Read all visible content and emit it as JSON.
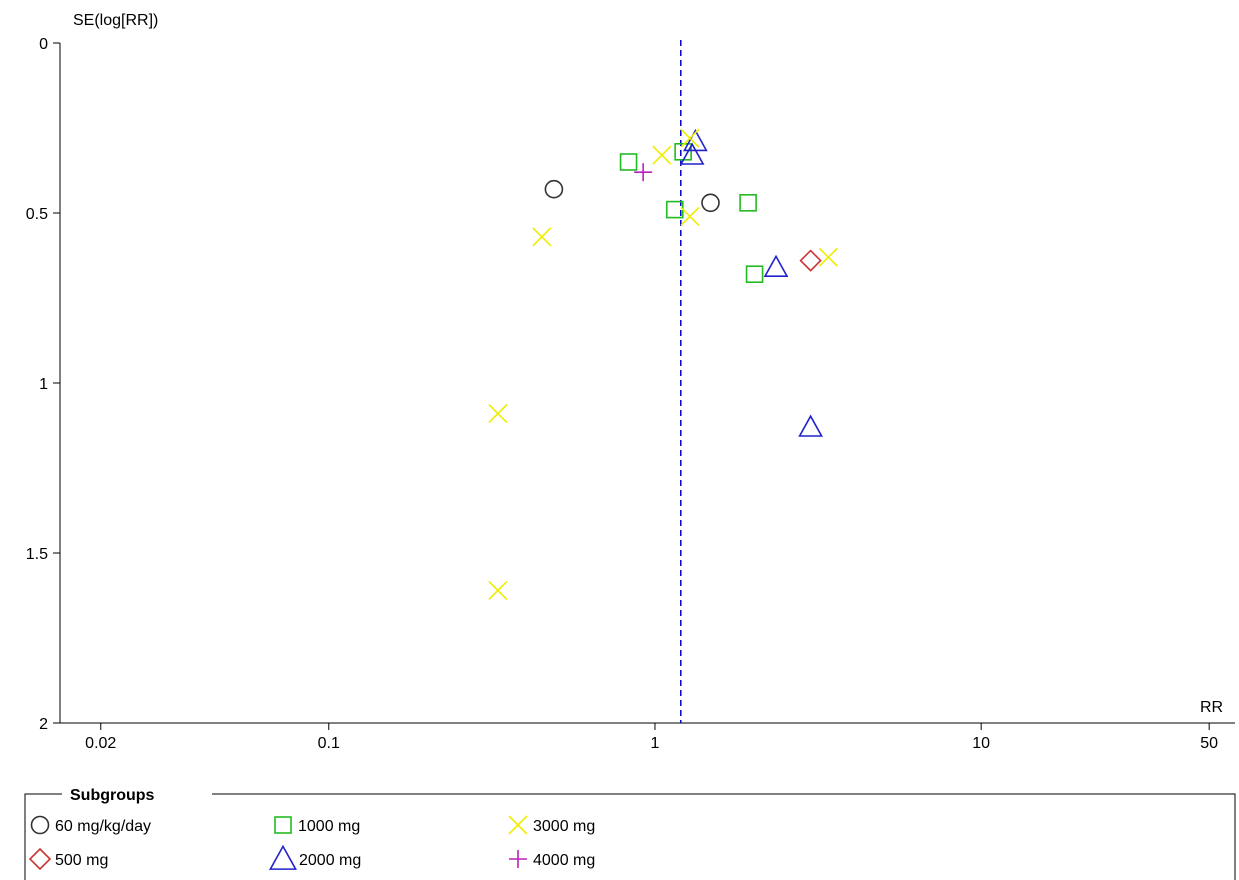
{
  "chart_data": {
    "type": "scatter",
    "title": "",
    "xlabel": "RR",
    "ylabel": "SE(log[RR])",
    "x_scale": "log",
    "xlim": [
      0.015,
      60
    ],
    "ylim": [
      0,
      2
    ],
    "y_inverted": true,
    "x_ticks": [
      0.02,
      0.1,
      1,
      10,
      50
    ],
    "x_tick_labels": [
      "0.02",
      "0.1",
      "1",
      "10",
      "50"
    ],
    "y_ticks": [
      0,
      0.5,
      1,
      1.5,
      2
    ],
    "y_tick_labels": [
      "0",
      "0.5",
      "1",
      "1.5",
      "2"
    ],
    "reference_line": {
      "x": 1.2,
      "style": "dashed",
      "color": "#0000cc"
    },
    "grid": false,
    "legend": {
      "title": "Subgroups",
      "placement": "bottom"
    },
    "series": [
      {
        "name": "60 mg/kg/day",
        "marker": "circle",
        "color": "#333333",
        "points": [
          [
            0.49,
            0.43
          ],
          [
            1.48,
            0.47
          ]
        ]
      },
      {
        "name": "500 mg",
        "marker": "diamond",
        "color": "#cc3333",
        "points": [
          [
            3.0,
            0.64
          ]
        ]
      },
      {
        "name": "1000 mg",
        "marker": "square",
        "color": "#22bb22",
        "points": [
          [
            0.83,
            0.35
          ],
          [
            1.22,
            0.32
          ],
          [
            1.15,
            0.49
          ],
          [
            1.93,
            0.47
          ],
          [
            2.02,
            0.68
          ]
        ]
      },
      {
        "name": "2000 mg",
        "marker": "triangle",
        "color": "#2222cc",
        "points": [
          [
            1.33,
            0.29
          ],
          [
            1.3,
            0.33
          ],
          [
            2.35,
            0.66
          ],
          [
            3.0,
            1.13
          ]
        ]
      },
      {
        "name": "3000 mg",
        "marker": "x",
        "color": "#eeee00",
        "points": [
          [
            1.05,
            0.33
          ],
          [
            1.28,
            0.28
          ],
          [
            1.28,
            0.51
          ],
          [
            0.45,
            0.57
          ],
          [
            3.4,
            0.63
          ],
          [
            0.33,
            1.09
          ],
          [
            0.33,
            1.61
          ]
        ]
      },
      {
        "name": "4000 mg",
        "marker": "plus",
        "color": "#bb22bb",
        "points": [
          [
            0.92,
            0.38
          ]
        ]
      }
    ]
  }
}
